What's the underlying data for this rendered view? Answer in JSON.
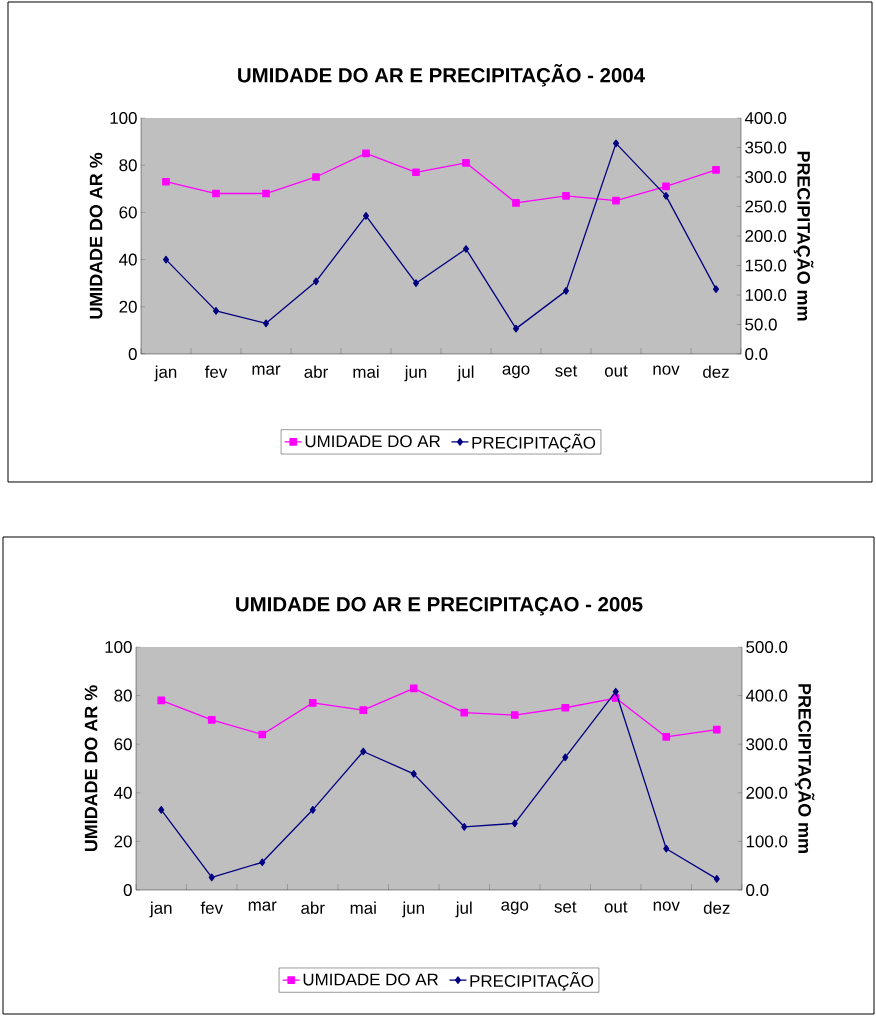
{
  "chart_data": [
    {
      "type": "line",
      "title": "UMIDADE DO AR E PRECIPITAÇÃO - 2004",
      "ylabel": "UMIDADE DO AR %",
      "y2label": "PRECIPITAÇÃO mm",
      "categories": [
        "jan",
        "fev",
        "mar",
        "abr",
        "mai",
        "jun",
        "jul",
        "ago",
        "set",
        "out",
        "nov",
        "dez"
      ],
      "series": [
        {
          "name": "UMIDADE DO AR",
          "color": "#ff00ff",
          "marker": "square",
          "values": [
            73,
            68,
            68,
            75,
            85,
            77,
            81,
            64,
            67,
            65,
            71,
            78
          ]
        },
        {
          "name": "PRECIPITAÇÃO",
          "color": "#000080",
          "marker": "diamond",
          "axis": "y2",
          "values": [
            160,
            73,
            52,
            123,
            234,
            120,
            178,
            43,
            107,
            357,
            268,
            110
          ]
        }
      ],
      "ylim": [
        0,
        100
      ],
      "yticks": [
        0,
        20,
        40,
        60,
        80,
        100
      ],
      "y2lim": [
        0,
        400
      ],
      "y2ticks": [
        {
          "value": 0,
          "label": "0.0"
        },
        {
          "value": 50,
          "label": "50.0"
        },
        {
          "value": 100,
          "label": "100.0"
        },
        {
          "value": 150,
          "label": "150.0"
        },
        {
          "value": 200,
          "label": "200.0"
        },
        {
          "value": 250,
          "label": "250.0"
        },
        {
          "value": 300,
          "label": "300.0"
        },
        {
          "value": 350,
          "label": "350.0"
        },
        {
          "value": 400,
          "label": "400.0"
        }
      ],
      "legend": "bottom",
      "line_style": "solid"
    },
    {
      "type": "line",
      "title": "UMIDADE DO AR E PRECIPITAÇAO - 2005",
      "ylabel": "UMIDADE DO AR %",
      "y2label": "PRECIPITAÇÃO mm",
      "categories": [
        "jan",
        "fev",
        "mar",
        "abr",
        "mai",
        "jun",
        "jul",
        "ago",
        "set",
        "out",
        "nov",
        "dez"
      ],
      "series": [
        {
          "name": "UMIDADE DO AR",
          "color": "#ff00ff",
          "marker": "square",
          "values": [
            78,
            70,
            64,
            77,
            74,
            83,
            73,
            72,
            75,
            79,
            63,
            66
          ]
        },
        {
          "name": "PRECIPITAÇÃO",
          "color": "#000080",
          "marker": "diamond",
          "axis": "y2",
          "values": [
            165,
            26,
            57,
            165,
            285,
            239,
            130,
            137,
            273,
            408,
            85,
            23
          ]
        }
      ],
      "ylim": [
        0,
        100
      ],
      "yticks": [
        0,
        20,
        40,
        60,
        80,
        100
      ],
      "y2lim": [
        0,
        500
      ],
      "y2ticks": [
        {
          "value": 0,
          "label": "0.0"
        },
        {
          "value": 100,
          "label": "100.0"
        },
        {
          "value": 200,
          "label": "200.0"
        },
        {
          "value": 300,
          "label": "300.0"
        },
        {
          "value": 400,
          "label": "400.0"
        },
        {
          "value": 500,
          "label": "500.0"
        }
      ],
      "legend": "bottom",
      "line_style": "solid"
    }
  ]
}
